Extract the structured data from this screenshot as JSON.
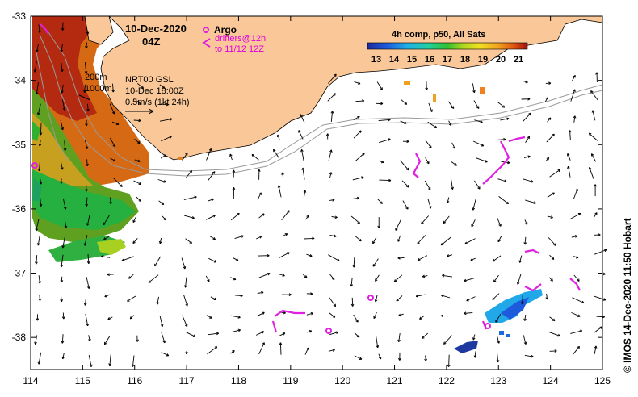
{
  "map": {
    "date": "10-Dec-2020",
    "time": "04Z",
    "product_line1": "NRT00 GSL",
    "product_line2": "10-Dec 18:00Z",
    "scale_label": "0.5m/s (1kt 24h)",
    "contour_200": "200m",
    "contour_1000": "1000m",
    "credit": "© IMOS 14-Dec-2020 11:50 Hobart",
    "lon_range": [
      114,
      125
    ],
    "lat_range": [
      -38.5,
      -33
    ]
  },
  "legend": {
    "argo": "Argo",
    "drifters_line1": "drifters@12h",
    "drifters_line2": "to 11/12 12Z",
    "argo_color": "#e020e0",
    "drifter_color": "#e020e0"
  },
  "colorbar": {
    "title": "4h comp, p50, All Sats",
    "unit_ticks": [
      "13",
      "14",
      "15",
      "16",
      "17",
      "18",
      "19",
      "20",
      "21"
    ],
    "min": 12.5,
    "max": 21.5
  },
  "axes": {
    "x_ticks": [
      "114",
      "115",
      "116",
      "117",
      "118",
      "119",
      "120",
      "121",
      "122",
      "123",
      "124",
      "125"
    ],
    "y_ticks": [
      "-33",
      "-34",
      "-35",
      "-36",
      "-37",
      "-38"
    ]
  },
  "colors": {
    "land": "#fac898",
    "arrow": "#000000",
    "contour": "#9a9a9a"
  }
}
